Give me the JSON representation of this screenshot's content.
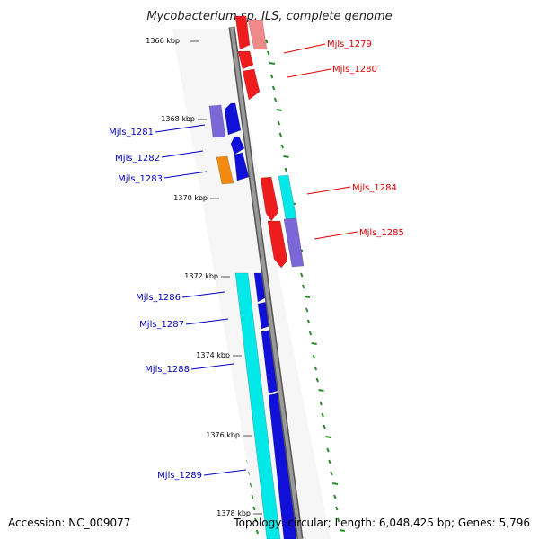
{
  "title": "Mycobacterium sp. JLS, complete genome",
  "footer": {
    "accession": "Accession: NC_009077",
    "summary": "Topology: circular; Length: 6,048,425 bp; Genes: 5,796"
  },
  "ticks": [
    "1366 kbp",
    "1368 kbp",
    "1370 kbp",
    "1372 kbp",
    "1374 kbp",
    "1376 kbp",
    "1378 kbp"
  ],
  "genes": {
    "right": [
      "Mjls_1279",
      "Mjls_1280",
      "Mjls_1284",
      "Mjls_1285"
    ],
    "left": [
      "Mjls_1281",
      "Mjls_1282",
      "Mjls_1283",
      "Mjls_1286",
      "Mjls_1287",
      "Mjls_1288",
      "Mjls_1289"
    ]
  },
  "colors": {
    "forward": "#ee1c1c",
    "forward_light": "#f08a8a",
    "reverse": "#1010d8",
    "cyan": "#00e8e8",
    "purple": "#7b68d6",
    "orange": "#f28a10",
    "backbone": "#8c8c8c",
    "gc": "#2b8a2b",
    "label_red": "#dd0000",
    "label_blue": "#0000bb"
  }
}
